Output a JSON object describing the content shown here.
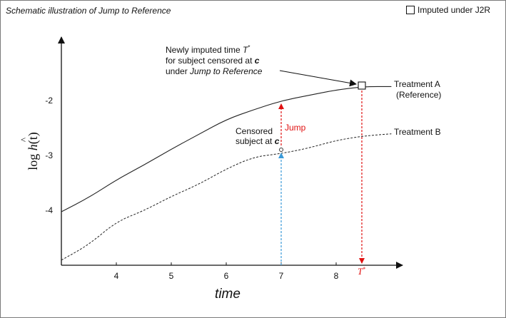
{
  "title": "Schematic illustration of Jump to Reference",
  "legend": {
    "label": "Imputed under J2R",
    "icon": "open-square-marker"
  },
  "axes": {
    "xlabel": "time",
    "ylabel_log": "log ",
    "ylabel_h": "h",
    "ylabel_paren": "(t)",
    "xticks": [
      "4",
      "5",
      "6",
      "7",
      "8"
    ],
    "yticks": [
      "-2",
      "-3",
      "-4"
    ]
  },
  "series_labels": {
    "treatment_a_line1": "Treatment A",
    "treatment_a_line2": "(Reference)",
    "treatment_b": "Treatment B"
  },
  "annotations": {
    "imputed_line1_pre": "Newly imputed time ",
    "imputed_line1_T": "T",
    "imputed_line2": "for subject censored at ",
    "imputed_line3_pre": "under ",
    "imputed_line3_em": "Jump to Reference",
    "c": "c",
    "censored_line1": "Censored",
    "censored_line2": "subject at ",
    "jump": "Jump",
    "tstar": "T",
    "star": "*"
  },
  "colors": {
    "jump_arrow": "#e01010",
    "censor_arrow": "#3a9ad9",
    "curve": "#222222"
  },
  "chart_data": {
    "type": "line",
    "title": "Schematic illustration of Jump to Reference",
    "xlabel": "time",
    "ylabel": "log ĥ(t)",
    "xlim": [
      3.0,
      9.0
    ],
    "ylim": [
      -4.95,
      -0.95
    ],
    "series": [
      {
        "name": "Treatment A",
        "style": "solid",
        "x": [
          3.0,
          3.5,
          4.0,
          4.5,
          5.0,
          5.5,
          6.0,
          6.5,
          7.0,
          7.5,
          8.0,
          8.5,
          9.0
        ],
        "y": [
          -4.0,
          -3.74,
          -3.42,
          -3.15,
          -2.86,
          -2.59,
          -2.32,
          -2.14,
          -1.98,
          -1.88,
          -1.78,
          -1.72,
          -1.72
        ]
      },
      {
        "name": "Treatment B",
        "style": "dashed",
        "x": [
          3.0,
          3.5,
          4.0,
          4.5,
          5.0,
          5.5,
          6.0,
          6.5,
          7.0,
          7.5,
          8.0,
          8.5,
          9.0
        ],
        "y": [
          -4.88,
          -4.6,
          -4.18,
          -3.98,
          -3.72,
          -3.5,
          -3.22,
          -3.0,
          -2.94,
          -2.84,
          -2.7,
          -2.62,
          -2.58
        ]
      }
    ],
    "censor_time": 7.0,
    "imputed_time": 8.48,
    "imputed_value": -1.75
  }
}
